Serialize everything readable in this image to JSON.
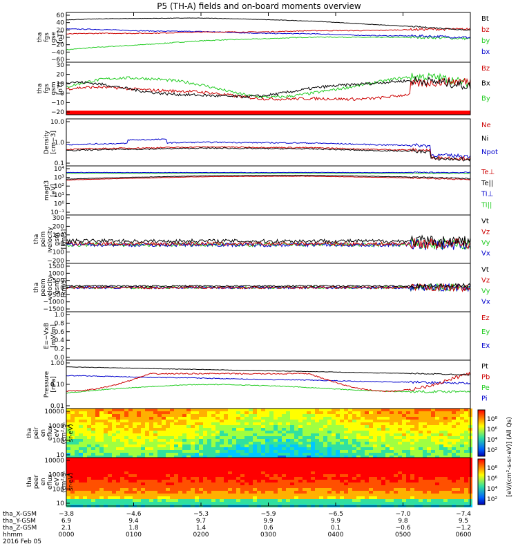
{
  "page": {
    "title": "P5 (TH-A) fields and on-board moments overview",
    "date": "2016 Feb 05"
  },
  "chart_data": {
    "type": "line",
    "x_range_hours": [
      0,
      6
    ],
    "panels": [
      {
        "id": "p1",
        "ylabel": [
          "tha",
          "fgs",
          "gse",
          "[nT]"
        ],
        "yticks": [
          "60",
          "40",
          "20",
          "0",
          "−20",
          "−40",
          "−60"
        ],
        "ylim": [
          -60,
          60
        ],
        "legend": [
          {
            "name": "Bt",
            "color": "#000000"
          },
          {
            "name": "bz",
            "color": "#cc0000"
          },
          {
            "name": "by",
            "color": "#22cc22"
          },
          {
            "name": "bx",
            "color": "#0000cc"
          }
        ]
      },
      {
        "id": "p2",
        "ylabel": [
          "tha",
          "fgs",
          "gsm",
          "[nT]"
        ],
        "yticks": [
          "30",
          "20",
          "10",
          "0",
          "−10",
          "−20"
        ],
        "ylim": [
          -25,
          30
        ],
        "legend": [
          {
            "name": "Bz",
            "color": "#cc0000"
          },
          {
            "name": "Bx",
            "color": "#000000"
          },
          {
            "name": "By",
            "color": "#22cc22"
          }
        ]
      },
      {
        "id": "p3",
        "ylabel": [
          "Density",
          "[cm−3]"
        ],
        "yticks": [
          "10.0",
          "1.0",
          "0.1"
        ],
        "ylim": [
          0.1,
          10
        ],
        "log": true,
        "legend": [
          {
            "name": "Ne",
            "color": "#cc0000"
          },
          {
            "name": "Ni",
            "color": "#000000"
          },
          {
            "name": "Npot",
            "color": "#0000cc"
          }
        ]
      },
      {
        "id": "p4",
        "ylabel": [
          "magt3",
          "[eV]"
        ],
        "yticks": [
          "10⁴",
          "10³",
          "10²",
          "10¹",
          "10⁰",
          "10⁻¹"
        ],
        "ylim": [
          -1,
          4.2
        ],
        "log": true,
        "legend": [
          {
            "name": "Te⊥",
            "color": "#cc0000"
          },
          {
            "name": "Te||",
            "color": "#000000"
          },
          {
            "name": "Ti⊥",
            "color": "#0000cc"
          },
          {
            "name": "Ti||",
            "color": "#22cc22"
          }
        ]
      },
      {
        "id": "p5",
        "ylabel": [
          "tha",
          "peim",
          "velocity",
          "gsm",
          "[km/s]"
        ],
        "yticks": [
          "300",
          "200",
          "100",
          "0",
          "−100",
          "−200"
        ],
        "ylim": [
          -200,
          320
        ],
        "legend": [
          {
            "name": "Vt",
            "color": "#000000"
          },
          {
            "name": "Vz",
            "color": "#cc0000"
          },
          {
            "name": "Vy",
            "color": "#22cc22"
          },
          {
            "name": "Vx",
            "color": "#0000cc"
          }
        ]
      },
      {
        "id": "p6",
        "ylabel": [
          "tha",
          "peem",
          "velocity",
          "gsm",
          "[km/s]"
        ],
        "yticks": [
          "1500",
          "1000",
          "500",
          "0",
          "−500",
          "−1000",
          "−1500"
        ],
        "ylim": [
          -1500,
          1500
        ],
        "legend": [
          {
            "name": "Vt",
            "color": "#000000"
          },
          {
            "name": "Vz",
            "color": "#cc0000"
          },
          {
            "name": "Vy",
            "color": "#22cc22"
          },
          {
            "name": "Vx",
            "color": "#0000cc"
          }
        ]
      },
      {
        "id": "p7",
        "ylabel": [
          "E=−VxB",
          "[mV/m]"
        ],
        "yticks": [
          "1.0",
          "0.8",
          "0.6",
          "0.4",
          "0.2",
          "0.0"
        ],
        "ylim": [
          0,
          1
        ],
        "legend": [
          {
            "name": "Ez",
            "color": "#cc0000"
          },
          {
            "name": "Ey",
            "color": "#22cc22"
          },
          {
            "name": "Ex",
            "color": "#0000cc"
          }
        ]
      },
      {
        "id": "p8",
        "ylabel": [
          "Pressure",
          "[nPa]"
        ],
        "yticks": [
          "1.00",
          "0.10",
          "0.01"
        ],
        "ylim": [
          0.01,
          3
        ],
        "log": true,
        "legend": [
          {
            "name": "Pt",
            "color": "#000000"
          },
          {
            "name": "Pb",
            "color": "#cc0000"
          },
          {
            "name": "Pe",
            "color": "#22cc22"
          },
          {
            "name": "Pi",
            "color": "#0000cc"
          }
        ]
      },
      {
        "id": "p9",
        "ylabel": [
          "tha",
          "peir",
          "en",
          "eflux",
          "eV",
          "(cm²-s-",
          "sr-eV)"
        ],
        "yticks": [
          "10000",
          "1000",
          "100",
          "10"
        ],
        "type": "heatmap"
      },
      {
        "id": "p10",
        "ylabel": [
          "tha",
          "peer",
          "en",
          "eflux",
          "eV",
          "(cm²-s-",
          "sr-eV)"
        ],
        "yticks": [
          "10000",
          "1000",
          "100",
          "10"
        ],
        "type": "heatmap"
      }
    ],
    "colorbars": [
      {
        "ticks": [
          "10⁸",
          "10⁶",
          "10⁴",
          "10²"
        ]
      },
      {
        "ticks": [
          "10⁸",
          "10⁶",
          "10⁴",
          "10²"
        ]
      }
    ],
    "colorbar_label": "[eV/(cm²-s-sr-eV)] (All Qs)",
    "xaxis": {
      "rows": [
        {
          "label": "tha_X-GSM",
          "values": [
            "−3.8",
            "−4.6",
            "−5.3",
            "−5.9",
            "−6.5",
            "−7.0",
            "−7.4"
          ]
        },
        {
          "label": "tha_Y-GSM",
          "values": [
            "6.9",
            "9.4",
            "9.7",
            "9.9",
            "9.9",
            "9.8",
            "9.5"
          ]
        },
        {
          "label": "tha_Z-GSM",
          "values": [
            "2.1",
            "1.8",
            "1.4",
            "0.6",
            "0.1",
            "−0.6",
            "−1.2"
          ]
        },
        {
          "label": "hhmm",
          "values": [
            "0000",
            "0100",
            "0200",
            "0300",
            "0400",
            "0500",
            "0600"
          ]
        }
      ]
    }
  }
}
